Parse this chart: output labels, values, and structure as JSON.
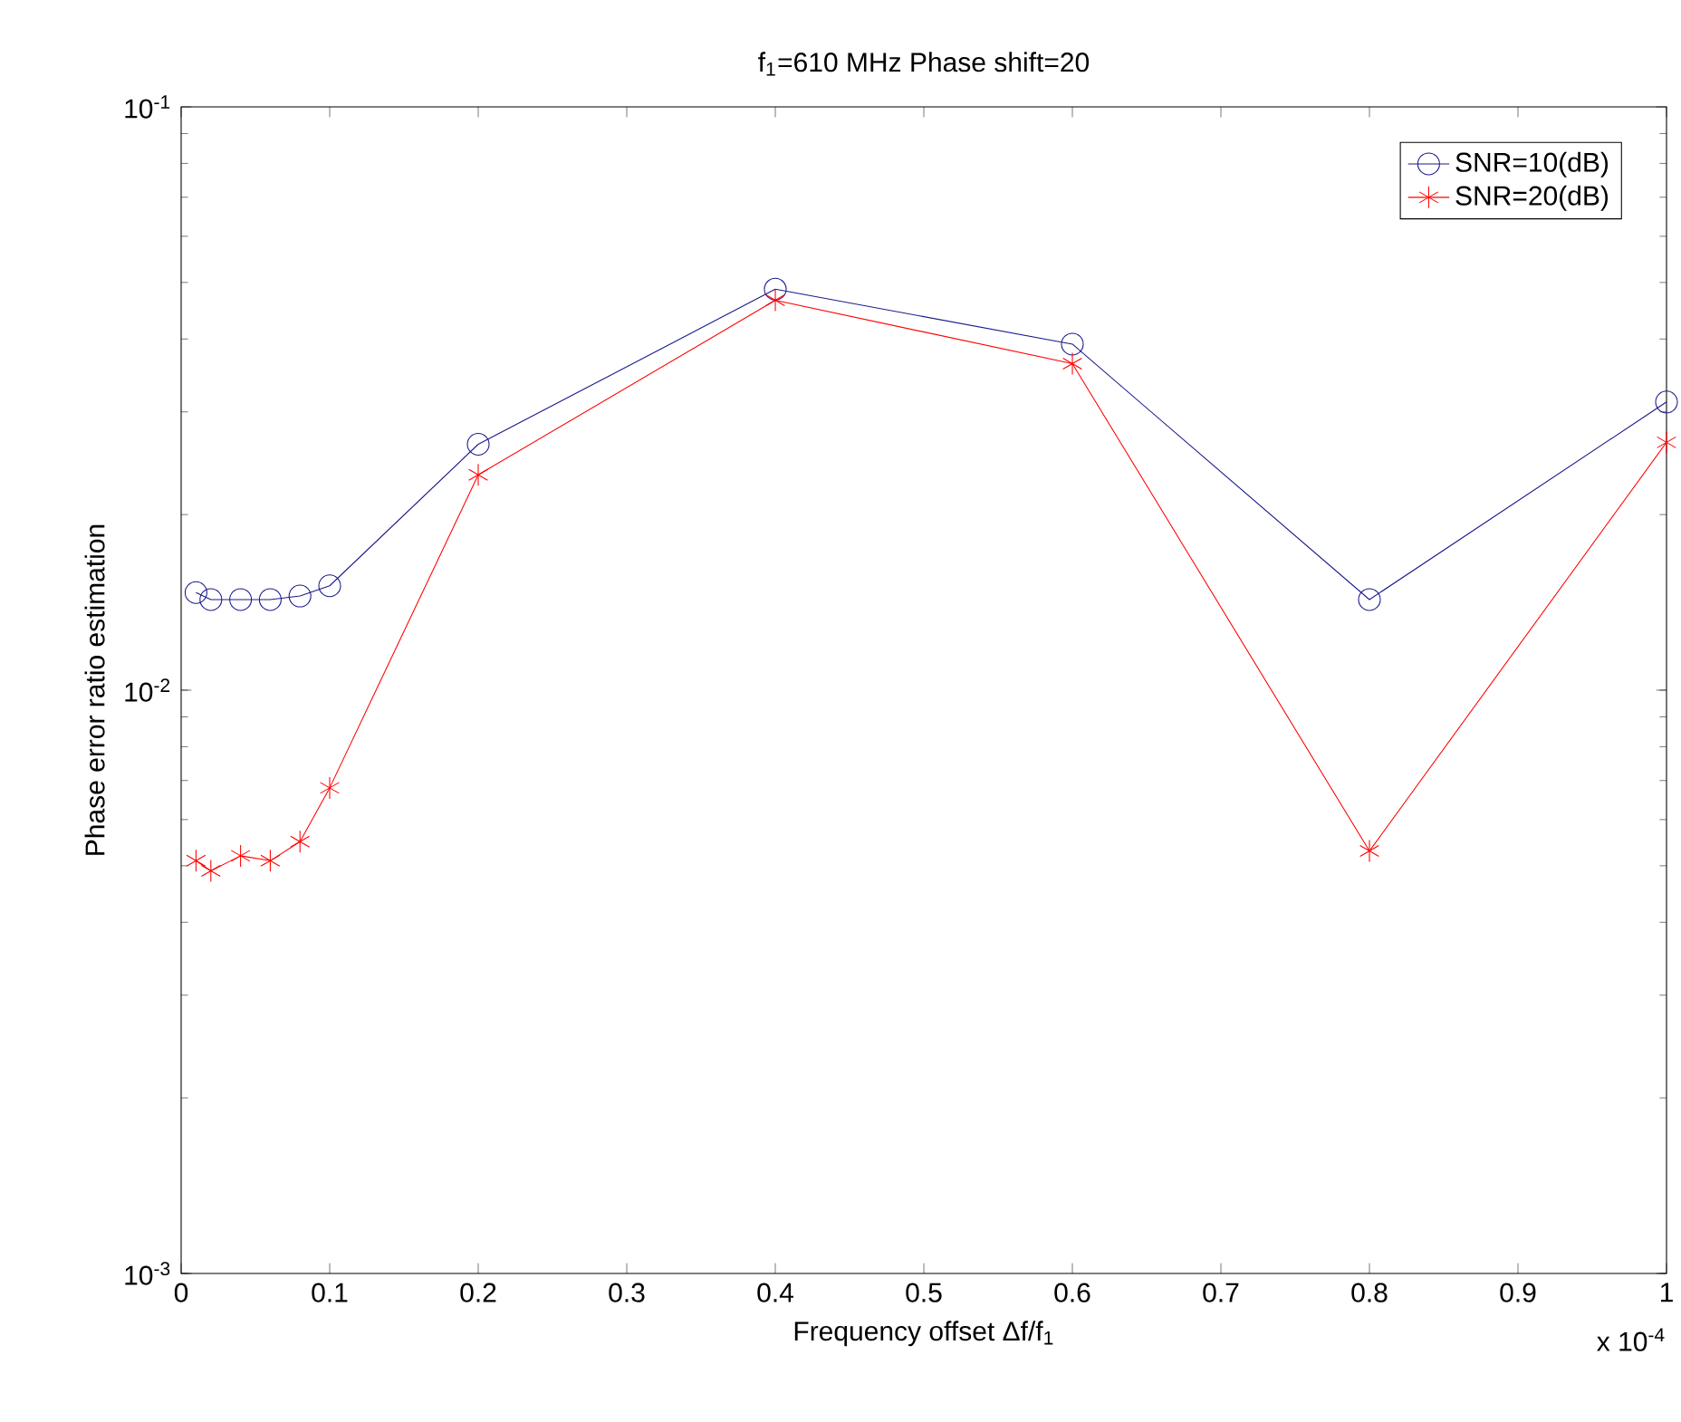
{
  "chart_data": {
    "type": "line",
    "title": "f$_{1}$=610 MHz Phase shift=20",
    "xlabel": "Frequency offset Δf/f$_{1}$",
    "ylabel": "Phase error ratio estimation",
    "annotations": [
      "x 10$^{-4}$"
    ],
    "x": [
      0.01,
      0.02,
      0.04,
      0.06,
      0.08,
      0.1,
      0.2,
      0.4,
      0.6,
      0.8,
      1.0
    ],
    "series": [
      {
        "name": "SNR=10(dB)",
        "color": "#1a1a8c",
        "marker": "circle",
        "values": [
          0.0147,
          0.0143,
          0.0143,
          0.0143,
          0.0145,
          0.0151,
          0.0264,
          0.0487,
          0.0392,
          0.0143,
          0.0312
        ]
      },
      {
        "name": "SNR=20(dB)",
        "color": "#ff0000",
        "marker": "cross",
        "values": [
          0.0051,
          0.0049,
          0.0052,
          0.0051,
          0.0055,
          0.0068,
          0.0234,
          0.0466,
          0.0363,
          0.0053,
          0.0266
        ]
      }
    ],
    "xlim": [
      0,
      1
    ],
    "xticks": [
      0,
      0.1,
      0.2,
      0.3,
      0.4,
      0.5,
      0.6,
      0.7,
      0.8,
      0.9,
      1
    ],
    "ylim": [
      0.001,
      0.1
    ],
    "yticks": [
      {
        "value": 0.001,
        "label": "10$^{-3}$"
      },
      {
        "value": 0.01,
        "label": "10$^{-2}$"
      },
      {
        "value": 0.1,
        "label": "10$^{-1}$"
      }
    ],
    "log": "y",
    "grid": false,
    "legend": "top right",
    "line_style": "solid"
  }
}
